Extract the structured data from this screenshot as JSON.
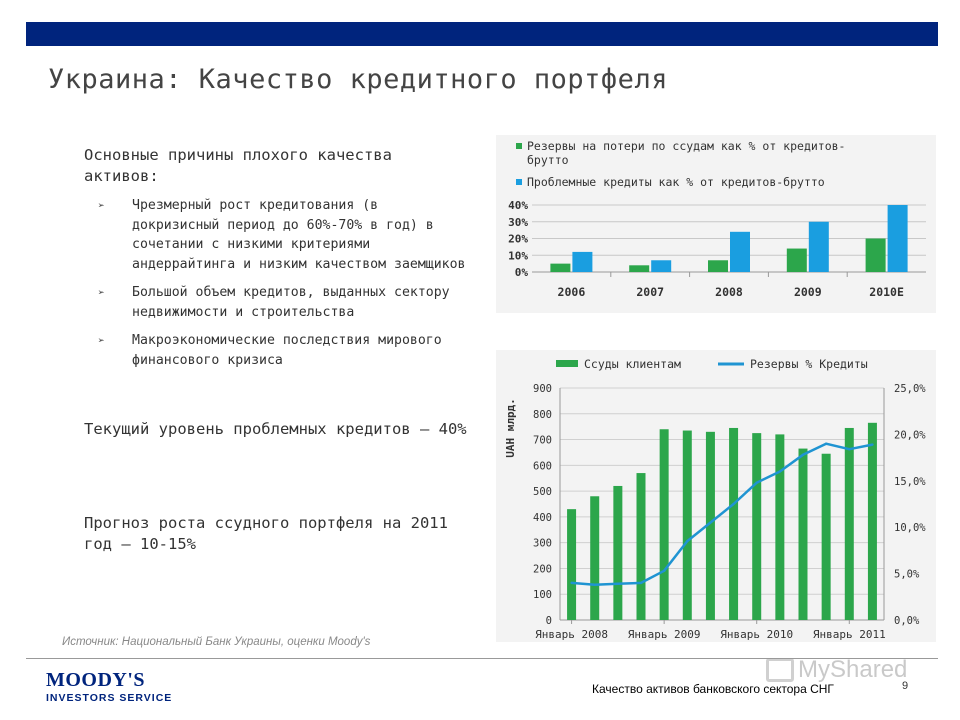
{
  "title": "Украина: Качество кредитного портфеля",
  "left": {
    "reasons_heading": "Основные причины плохого качества активов:",
    "bullets": [
      "Чрезмерный рост кредитования (в докризисный период до 60%-70% в год) в сочетании с низкими критериями андеррайтинга и низким качеством заемщиков",
      "Большой объем кредитов, выданных сектору недвижимости и строительства",
      "Макроэкономические последствия мирового финансового кризиса"
    ],
    "current_level": "Текущий уровень проблемных кредитов – 40%",
    "forecast": "Прогноз роста ссудного портфеля на 2011 год – 10-15%"
  },
  "source": "Источник: Национальный Банк Украины, оценки Moody's",
  "footer": {
    "logo_line1": "MOODY'S",
    "logo_line2": "INVESTORS SERVICE",
    "text": "Качество активов банковского сектора СНГ",
    "page": "9",
    "watermark": "MyShared"
  },
  "colors": {
    "topbar": "#00247d",
    "green": "#2ca64b",
    "blue": "#1a9ee0",
    "line": "#1f94d2"
  },
  "chart_data": [
    {
      "type": "bar",
      "categories": [
        "2006",
        "2007",
        "2008",
        "2009",
        "2010E"
      ],
      "series": [
        {
          "name": "Резервы на потери по ссудам как  % от кредитов-брутто",
          "values": [
            5,
            4,
            7,
            14,
            20
          ]
        },
        {
          "name": "Проблемные кредиты как  % от кредитов-брутто",
          "values": [
            12,
            7,
            24,
            30,
            40
          ]
        }
      ],
      "ylim": [
        0,
        40
      ],
      "yticks": [
        "0%",
        "10%",
        "20%",
        "30%",
        "40%"
      ],
      "legend": "top"
    },
    {
      "type": "bar+line",
      "x_labels": [
        "Январь 2008",
        "Январь 2009",
        "Январь 2010",
        "Январь 2011"
      ],
      "ylabel": "UAH млрд.",
      "series": [
        {
          "name": "Ссуды клиентам",
          "axis": "left",
          "values": [
            430,
            480,
            520,
            570,
            740,
            735,
            730,
            745,
            725,
            720,
            665,
            645,
            745,
            765
          ]
        },
        {
          "name": "Резервы % Кредиты",
          "axis": "right",
          "values": [
            4.0,
            3.8,
            3.9,
            4.0,
            5.3,
            8.5,
            10.5,
            12.5,
            14.8,
            16.0,
            17.8,
            19.0,
            18.4,
            18.9
          ]
        }
      ],
      "ylim_left": [
        0,
        900
      ],
      "ylim_right": [
        0,
        25
      ],
      "yticks_left": [
        "0",
        "100",
        "200",
        "300",
        "400",
        "500",
        "600",
        "700",
        "800",
        "900"
      ],
      "yticks_right": [
        "0,0%",
        "5,0%",
        "10,0%",
        "15,0%",
        "20,0%",
        "25,0%"
      ],
      "legend": "top"
    }
  ]
}
